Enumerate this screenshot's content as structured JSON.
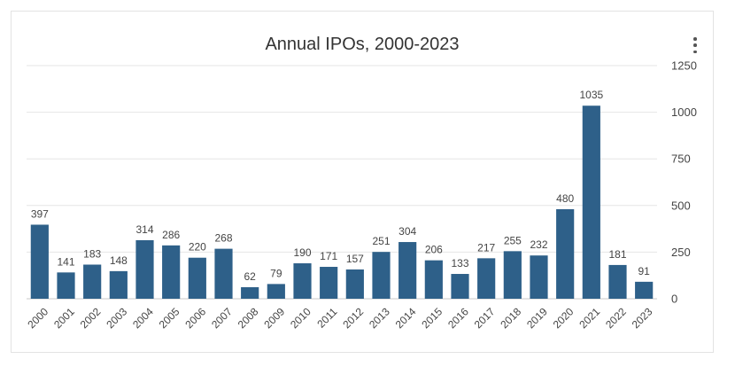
{
  "menu_icon": "more-vertical-icon",
  "colors": {
    "bar": "#2e6089",
    "grid": "#e6e6e6",
    "text": "#444444"
  },
  "chart_data": {
    "type": "bar",
    "title": "Annual IPOs, 2000-2023",
    "xlabel": "",
    "ylabel": "",
    "categories": [
      "2000",
      "2001",
      "2002",
      "2003",
      "2004",
      "2005",
      "2006",
      "2007",
      "2008",
      "2009",
      "2010",
      "2011",
      "2012",
      "2013",
      "2014",
      "2015",
      "2016",
      "2017",
      "2018",
      "2019",
      "2020",
      "2021",
      "2022",
      "2023"
    ],
    "values": [
      397,
      141,
      183,
      148,
      314,
      286,
      220,
      268,
      62,
      79,
      190,
      171,
      157,
      251,
      304,
      206,
      133,
      217,
      255,
      232,
      480,
      1035,
      181,
      91
    ],
    "ylim": [
      0,
      1250
    ],
    "yticks": [
      0,
      250,
      500,
      750,
      1000,
      1250
    ],
    "y_axis_position": "right",
    "grid": true,
    "data_labels": true,
    "x_label_rotation": -45,
    "legend": "none"
  }
}
